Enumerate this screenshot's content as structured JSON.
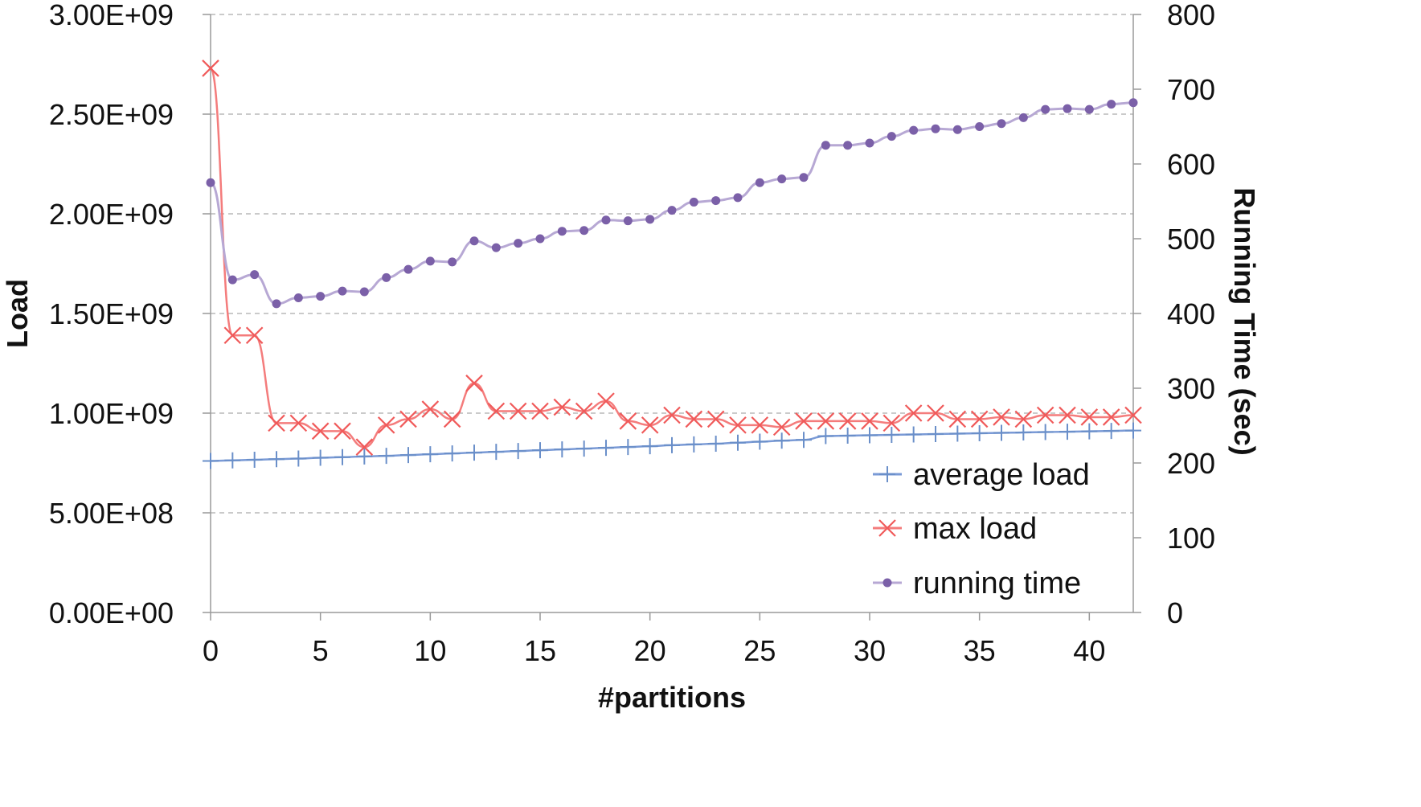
{
  "chart_data": {
    "type": "line",
    "xlabel": "#partitions",
    "ylabel_left": "Load",
    "ylabel_right": "Running Time (sec)",
    "x_ticks": [
      "0",
      "5",
      "10",
      "15",
      "20",
      "25",
      "30",
      "35",
      "40"
    ],
    "y_left_ticks": [
      "0.00E+00",
      "5.00E+08",
      "1.00E+09",
      "1.50E+09",
      "2.00E+09",
      "2.50E+09",
      "3.00E+09"
    ],
    "y_right_ticks": [
      "0",
      "100",
      "200",
      "300",
      "400",
      "500",
      "600",
      "700",
      "800"
    ],
    "xlim": [
      0,
      42
    ],
    "ylim_left": [
      0,
      3000000000
    ],
    "ylim_right": [
      0,
      800
    ],
    "grid": "horizontal dashed",
    "legend_position": "bottom-right",
    "series": [
      {
        "name": "average load",
        "axis": "left",
        "color": "#6a8fc9",
        "marker": "plus",
        "x": [
          0,
          1,
          2,
          3,
          4,
          5,
          6,
          7,
          8,
          9,
          10,
          11,
          12,
          13,
          14,
          15,
          16,
          17,
          18,
          19,
          20,
          21,
          22,
          23,
          24,
          25,
          26,
          27,
          28,
          29,
          30,
          31,
          32,
          33,
          34,
          35,
          36,
          37,
          38,
          39,
          40,
          41,
          42
        ],
        "values": [
          760000000,
          763000000,
          766000000,
          769000000,
          772000000,
          776000000,
          779000000,
          783000000,
          786000000,
          790000000,
          794000000,
          798000000,
          802000000,
          806000000,
          810000000,
          814000000,
          818000000,
          822000000,
          826000000,
          830000000,
          834000000,
          839000000,
          843000000,
          847000000,
          852000000,
          857000000,
          862000000,
          866000000,
          885000000,
          887000000,
          889000000,
          891000000,
          893000000,
          895000000,
          897000000,
          899000000,
          901000000,
          903000000,
          905000000,
          907000000,
          909000000,
          911000000,
          913000000
        ]
      },
      {
        "name": "max load",
        "axis": "left",
        "color": "#f05a5a",
        "marker": "x",
        "x": [
          0,
          1,
          2,
          3,
          4,
          5,
          6,
          7,
          8,
          9,
          10,
          11,
          12,
          13,
          14,
          15,
          16,
          17,
          18,
          19,
          20,
          21,
          22,
          23,
          24,
          25,
          26,
          27,
          28,
          29,
          30,
          31,
          32,
          33,
          34,
          35,
          36,
          37,
          38,
          39,
          40,
          41,
          42
        ],
        "values": [
          2730000000,
          1390000000,
          1390000000,
          950000000,
          950000000,
          910000000,
          910000000,
          830000000,
          940000000,
          970000000,
          1020000000,
          970000000,
          1150000000,
          1010000000,
          1010000000,
          1010000000,
          1030000000,
          1010000000,
          1060000000,
          960000000,
          940000000,
          990000000,
          970000000,
          970000000,
          940000000,
          940000000,
          930000000,
          960000000,
          960000000,
          960000000,
          960000000,
          950000000,
          1000000000,
          1000000000,
          970000000,
          970000000,
          980000000,
          970000000,
          990000000,
          990000000,
          980000000,
          980000000,
          990000000
        ]
      },
      {
        "name": "running time",
        "axis": "right",
        "color": "#7b60a8",
        "marker": "dot",
        "x": [
          0,
          1,
          2,
          3,
          4,
          5,
          6,
          7,
          8,
          9,
          10,
          11,
          12,
          13,
          14,
          15,
          16,
          17,
          18,
          19,
          20,
          21,
          22,
          23,
          24,
          25,
          26,
          27,
          28,
          29,
          30,
          31,
          32,
          33,
          34,
          35,
          36,
          37,
          38,
          39,
          40,
          41,
          42
        ],
        "values": [
          575,
          445,
          452,
          413,
          421,
          423,
          430,
          429,
          448,
          459,
          470,
          469,
          497,
          488,
          494,
          500,
          510,
          511,
          525,
          524,
          526,
          538,
          549,
          551,
          555,
          575,
          580,
          582,
          625,
          625,
          628,
          637,
          645,
          647,
          646,
          650,
          654,
          662,
          673,
          674,
          673,
          680,
          682
        ]
      }
    ]
  }
}
